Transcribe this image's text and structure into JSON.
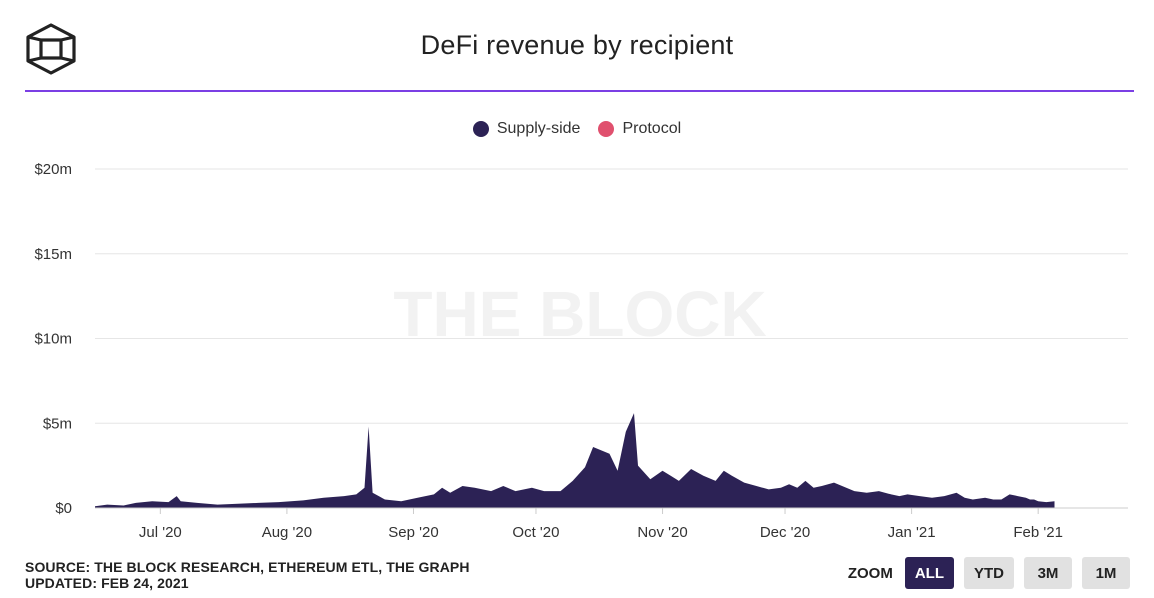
{
  "header": {
    "title": "DeFi revenue by recipient"
  },
  "colors": {
    "accent": "#7b3fe4",
    "supply_side": "#2c2255",
    "protocol": "#e0506e"
  },
  "watermark": "THE BLOCK",
  "footer": {
    "source": "SOURCE: THE BLOCK RESEARCH, ETHEREUM ETL, THE GRAPH",
    "updated": "UPDATED: FEB 24, 2021",
    "zoom_label": "ZOOM",
    "zoom_buttons": [
      "ALL",
      "YTD",
      "3M",
      "1M"
    ],
    "zoom_active": "ALL"
  },
  "chart_data": {
    "type": "area",
    "stacked": true,
    "title": "DeFi revenue by recipient",
    "x_range": [
      "2020-06-15",
      "2021-02-23"
    ],
    "x_ticks": [
      {
        "date": "2020-07-01",
        "label": "Jul '20"
      },
      {
        "date": "2020-08-01",
        "label": "Aug '20"
      },
      {
        "date": "2020-09-01",
        "label": "Sep '20"
      },
      {
        "date": "2020-10-01",
        "label": "Oct '20"
      },
      {
        "date": "2020-11-01",
        "label": "Nov '20"
      },
      {
        "date": "2020-12-01",
        "label": "Dec '20"
      },
      {
        "date": "2021-01-01",
        "label": "Jan '21"
      },
      {
        "date": "2021-02-01",
        "label": "Feb '21"
      }
    ],
    "y_ticks": [
      {
        "value": 0,
        "label": "$0"
      },
      {
        "value": 5,
        "label": "$5m"
      },
      {
        "value": 10,
        "label": "$10m"
      },
      {
        "value": 15,
        "label": "$15m"
      },
      {
        "value": 20,
        "label": "$20m"
      }
    ],
    "ylim": [
      0,
      20
    ],
    "y_unit": "millions USD",
    "grid": true,
    "legend_position": "top-center",
    "series": [
      {
        "name": "Supply-side",
        "points": [
          [
            "2020-06-15",
            0.1
          ],
          [
            "2020-06-18",
            0.2
          ],
          [
            "2020-06-22",
            0.15
          ],
          [
            "2020-06-25",
            0.3
          ],
          [
            "2020-06-29",
            0.4
          ],
          [
            "2020-07-03",
            0.35
          ],
          [
            "2020-07-05",
            0.7
          ],
          [
            "2020-07-06",
            0.4
          ],
          [
            "2020-07-10",
            0.3
          ],
          [
            "2020-07-15",
            0.2
          ],
          [
            "2020-07-20",
            0.25
          ],
          [
            "2020-07-25",
            0.3
          ],
          [
            "2020-07-30",
            0.35
          ],
          [
            "2020-08-05",
            0.45
          ],
          [
            "2020-08-10",
            0.6
          ],
          [
            "2020-08-15",
            0.7
          ],
          [
            "2020-08-18",
            0.8
          ],
          [
            "2020-08-20",
            1.2
          ],
          [
            "2020-08-21",
            4.8
          ],
          [
            "2020-08-22",
            0.9
          ],
          [
            "2020-08-25",
            0.5
          ],
          [
            "2020-08-29",
            0.4
          ],
          [
            "2020-09-02",
            0.6
          ],
          [
            "2020-09-06",
            0.8
          ],
          [
            "2020-09-08",
            1.2
          ],
          [
            "2020-09-10",
            0.9
          ],
          [
            "2020-09-13",
            1.3
          ],
          [
            "2020-09-16",
            1.2
          ],
          [
            "2020-09-20",
            1.0
          ],
          [
            "2020-09-23",
            1.3
          ],
          [
            "2020-09-26",
            1.0
          ],
          [
            "2020-09-30",
            1.2
          ],
          [
            "2020-10-03",
            1.0
          ],
          [
            "2020-10-07",
            1.0
          ],
          [
            "2020-10-10",
            1.6
          ],
          [
            "2020-10-13",
            2.4
          ],
          [
            "2020-10-15",
            3.6
          ],
          [
            "2020-10-17",
            3.4
          ],
          [
            "2020-10-19",
            3.2
          ],
          [
            "2020-10-21",
            2.2
          ],
          [
            "2020-10-23",
            4.5
          ],
          [
            "2020-10-25",
            5.6
          ],
          [
            "2020-10-26",
            2.5
          ],
          [
            "2020-10-29",
            1.7
          ],
          [
            "2020-11-01",
            2.2
          ],
          [
            "2020-11-03",
            1.9
          ],
          [
            "2020-11-05",
            1.6
          ],
          [
            "2020-11-08",
            2.3
          ],
          [
            "2020-11-11",
            1.9
          ],
          [
            "2020-11-14",
            1.6
          ],
          [
            "2020-11-16",
            2.2
          ],
          [
            "2020-11-18",
            1.9
          ],
          [
            "2020-11-21",
            1.5
          ],
          [
            "2020-11-24",
            1.3
          ],
          [
            "2020-11-27",
            1.1
          ],
          [
            "2020-11-30",
            1.2
          ],
          [
            "2020-12-02",
            1.4
          ],
          [
            "2020-12-04",
            1.2
          ],
          [
            "2020-12-06",
            1.6
          ],
          [
            "2020-12-08",
            1.2
          ],
          [
            "2020-12-10",
            1.3
          ],
          [
            "2020-12-13",
            1.5
          ],
          [
            "2020-12-16",
            1.2
          ],
          [
            "2020-12-18",
            1.0
          ],
          [
            "2020-12-21",
            0.9
          ],
          [
            "2020-12-24",
            1.0
          ],
          [
            "2020-12-27",
            0.8
          ],
          [
            "2020-12-29",
            0.7
          ],
          [
            "2020-12-31",
            0.8
          ],
          [
            "2021-01-03",
            0.7
          ],
          [
            "2021-01-06",
            0.6
          ],
          [
            "2021-01-09",
            0.7
          ],
          [
            "2021-01-12",
            0.9
          ],
          [
            "2021-01-14",
            0.6
          ],
          [
            "2021-01-16",
            0.5
          ],
          [
            "2021-01-19",
            0.6
          ],
          [
            "2021-01-21",
            0.5
          ],
          [
            "2021-01-23",
            0.5
          ],
          [
            "2021-01-25",
            0.8
          ],
          [
            "2021-01-27",
            0.7
          ],
          [
            "2021-01-29",
            0.6
          ],
          [
            "2021-01-30",
            0.5
          ],
          [
            "2021-01-31",
            0.5
          ],
          [
            "2021-02-01",
            0.4
          ],
          [
            "2021-02-03",
            0.35
          ],
          [
            "2021-02-05",
            0.4
          ]
        ]
      },
      {
        "name": "Protocol",
        "points": []
      }
    ]
  }
}
